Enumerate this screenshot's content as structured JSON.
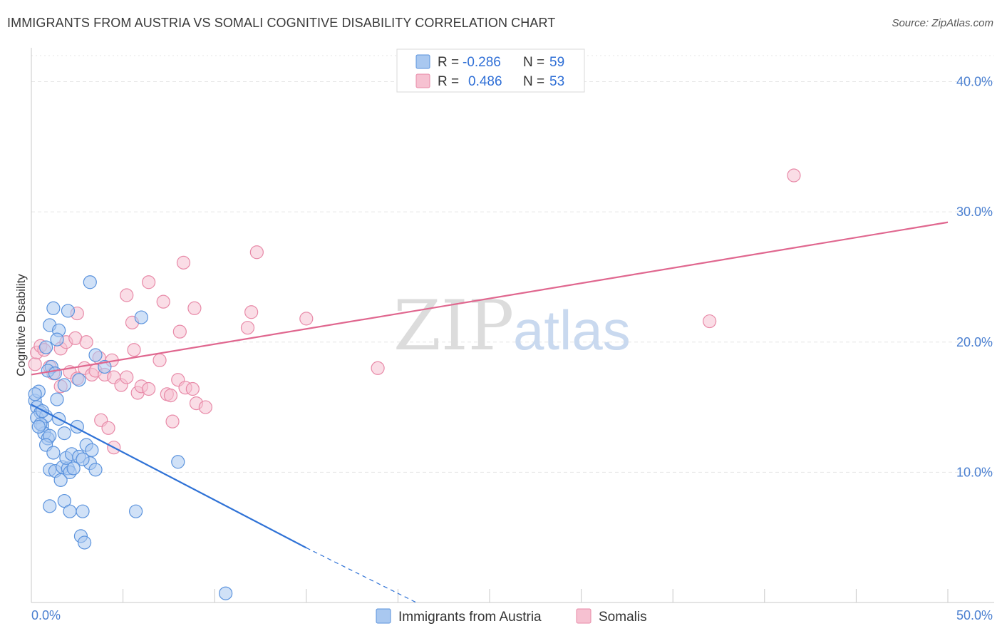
{
  "title": "IMMIGRANTS FROM AUSTRIA VS SOMALI COGNITIVE DISABILITY CORRELATION CHART",
  "source": "Source: ZipAtlas.com",
  "watermark": {
    "zip": "ZIP",
    "atlas": "atlas"
  },
  "colors": {
    "austria_fill": "#a9c8f0",
    "austria_stroke": "#5b93dd",
    "austria_line": "#2f72d6",
    "somali_fill": "#f6c1d1",
    "somali_stroke": "#e88aa8",
    "somali_line": "#e0678f",
    "grid": "#e6e6e6",
    "axis": "#c8c8c8",
    "tick_label": "#4a7fd0"
  },
  "legend": {
    "rows": [
      {
        "r_label": "R =",
        "r_value": "-0.286",
        "n_label": "N =",
        "n_value": "59"
      },
      {
        "r_label": "R =",
        "r_value": "0.486",
        "n_label": "N =",
        "n_value": "53"
      }
    ]
  },
  "chart_data": {
    "type": "scatter",
    "xlabel": "",
    "ylabel": "Cognitive Disability",
    "xlim": [
      0,
      50
    ],
    "ylim": [
      0,
      42
    ],
    "x_tick_labels": [
      "0.0%",
      "50.0%"
    ],
    "y_ticks": [
      10,
      20,
      30,
      40
    ],
    "y_tick_labels": [
      "10.0%",
      "20.0%",
      "30.0%",
      "40.0%"
    ],
    "grid": true,
    "legend_position": "top-center",
    "series": [
      {
        "name": "Immigrants from Austria",
        "regression": {
          "x": [
            0,
            15
          ],
          "y": [
            15.2,
            4.2
          ],
          "dashed_to": [
            21,
            0
          ]
        },
        "points": [
          [
            0.2,
            15.5
          ],
          [
            0.3,
            15.0
          ],
          [
            0.4,
            16.2
          ],
          [
            0.5,
            14.6
          ],
          [
            0.3,
            14.2
          ],
          [
            0.6,
            13.6
          ],
          [
            0.8,
            14.3
          ],
          [
            0.7,
            13.0
          ],
          [
            0.9,
            12.6
          ],
          [
            0.5,
            13.7
          ],
          [
            1.0,
            12.8
          ],
          [
            0.8,
            12.1
          ],
          [
            1.2,
            11.5
          ],
          [
            1.5,
            14.1
          ],
          [
            1.8,
            13.0
          ],
          [
            1.0,
            10.2
          ],
          [
            1.3,
            10.1
          ],
          [
            1.6,
            9.4
          ],
          [
            1.7,
            10.4
          ],
          [
            2.0,
            10.3
          ],
          [
            2.1,
            10.0
          ],
          [
            1.9,
            11.1
          ],
          [
            2.3,
            10.3
          ],
          [
            2.2,
            11.4
          ],
          [
            2.6,
            11.2
          ],
          [
            3.0,
            12.1
          ],
          [
            3.2,
            10.7
          ],
          [
            3.5,
            10.2
          ],
          [
            3.3,
            11.7
          ],
          [
            2.5,
            13.5
          ],
          [
            2.8,
            11.0
          ],
          [
            1.8,
            7.8
          ],
          [
            1.0,
            7.4
          ],
          [
            2.1,
            7.0
          ],
          [
            2.8,
            7.0
          ],
          [
            2.7,
            5.1
          ],
          [
            2.9,
            4.6
          ],
          [
            1.0,
            21.3
          ],
          [
            1.2,
            22.6
          ],
          [
            1.5,
            20.9
          ],
          [
            1.4,
            20.2
          ],
          [
            2.0,
            22.4
          ],
          [
            3.2,
            24.6
          ],
          [
            6.0,
            21.9
          ],
          [
            1.1,
            18.1
          ],
          [
            0.9,
            17.8
          ],
          [
            1.3,
            17.6
          ],
          [
            2.6,
            17.1
          ],
          [
            3.5,
            19.0
          ],
          [
            4.0,
            18.1
          ],
          [
            1.8,
            16.7
          ],
          [
            1.4,
            15.6
          ],
          [
            0.8,
            19.6
          ],
          [
            0.6,
            14.7
          ],
          [
            5.7,
            7.0
          ],
          [
            8.0,
            10.8
          ],
          [
            10.6,
            0.7
          ],
          [
            0.2,
            16.0
          ],
          [
            0.4,
            13.5
          ]
        ]
      },
      {
        "name": "Somalis",
        "regression": {
          "x": [
            0,
            50
          ],
          "y": [
            17.5,
            29.2
          ]
        },
        "points": [
          [
            0.2,
            18.3
          ],
          [
            0.3,
            19.2
          ],
          [
            0.5,
            19.7
          ],
          [
            0.7,
            19.4
          ],
          [
            1.0,
            18.1
          ],
          [
            1.2,
            17.6
          ],
          [
            1.6,
            19.5
          ],
          [
            1.9,
            20.0
          ],
          [
            2.4,
            20.3
          ],
          [
            2.1,
            17.7
          ],
          [
            2.5,
            17.2
          ],
          [
            2.9,
            18.0
          ],
          [
            3.0,
            20.0
          ],
          [
            3.3,
            17.5
          ],
          [
            3.5,
            17.8
          ],
          [
            3.7,
            18.8
          ],
          [
            4.0,
            17.5
          ],
          [
            4.4,
            18.6
          ],
          [
            4.5,
            17.3
          ],
          [
            4.9,
            16.7
          ],
          [
            5.2,
            17.3
          ],
          [
            5.6,
            19.4
          ],
          [
            5.8,
            16.1
          ],
          [
            6.0,
            16.6
          ],
          [
            6.4,
            16.4
          ],
          [
            7.0,
            18.6
          ],
          [
            7.4,
            16.0
          ],
          [
            7.6,
            15.9
          ],
          [
            8.0,
            17.1
          ],
          [
            8.4,
            16.5
          ],
          [
            8.8,
            16.4
          ],
          [
            9.0,
            15.3
          ],
          [
            9.5,
            15.0
          ],
          [
            2.5,
            22.2
          ],
          [
            3.8,
            14.0
          ],
          [
            4.2,
            13.4
          ],
          [
            4.5,
            11.9
          ],
          [
            5.2,
            23.6
          ],
          [
            5.5,
            21.5
          ],
          [
            6.4,
            24.6
          ],
          [
            7.2,
            23.1
          ],
          [
            7.7,
            13.9
          ],
          [
            8.1,
            20.8
          ],
          [
            8.3,
            26.1
          ],
          [
            8.9,
            22.6
          ],
          [
            11.8,
            21.1
          ],
          [
            12.0,
            22.3
          ],
          [
            12.3,
            26.9
          ],
          [
            15.0,
            21.8
          ],
          [
            18.9,
            18.0
          ],
          [
            37.0,
            21.6
          ],
          [
            41.6,
            32.8
          ],
          [
            1.6,
            16.6
          ]
        ]
      }
    ]
  },
  "bottom_legend": [
    {
      "label": "Immigrants from Austria"
    },
    {
      "label": "Somalis"
    }
  ]
}
